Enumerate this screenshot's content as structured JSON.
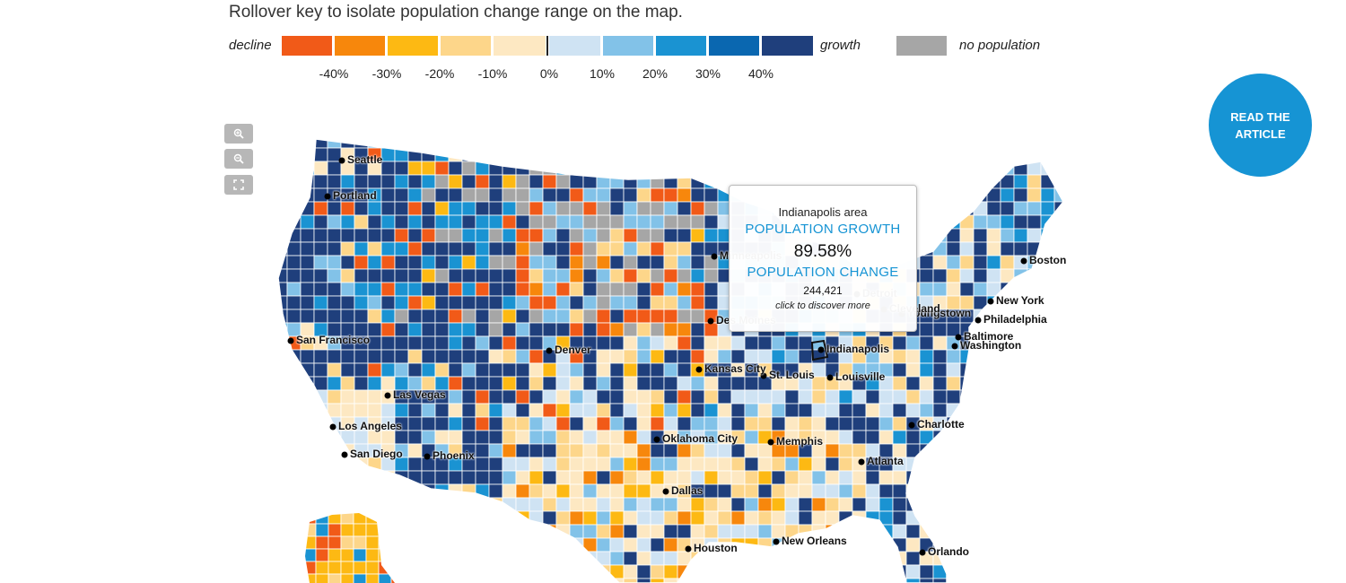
{
  "instructions": "Rollover key to isolate population change range on the map.",
  "legend": {
    "decline_label": "decline",
    "growth_label": "growth",
    "no_population_label": "no population",
    "swatches": [
      {
        "range": "below -40%",
        "color": "#f15a18"
      },
      {
        "range": "-40% to -30%",
        "color": "#f7870c"
      },
      {
        "range": "-30% to -20%",
        "color": "#fdb913"
      },
      {
        "range": "-20% to -10%",
        "color": "#fdd68a"
      },
      {
        "range": "-10% to 0%",
        "color": "#fde8c2"
      },
      {
        "range": "0% to 10%",
        "color": "#cfe3f3"
      },
      {
        "range": "10% to 20%",
        "color": "#82c2e8"
      },
      {
        "range": "20% to 30%",
        "color": "#1a93d2"
      },
      {
        "range": "30% to 40%",
        "color": "#0a67b0"
      },
      {
        "range": "above 40%",
        "color": "#1f3f7c"
      }
    ],
    "no_population_color": "#a6a6a6",
    "ticks": [
      "-40%",
      "-30%",
      "-20%",
      "-10%",
      "0%",
      "10%",
      "20%",
      "30%",
      "40%"
    ]
  },
  "controls": {
    "zoom_in_icon": "zoom-in-icon",
    "zoom_out_icon": "zoom-out-icon",
    "fullscreen_icon": "expand-icon"
  },
  "read_button": {
    "line1": "READ THE",
    "line2": "ARTICLE",
    "color": "#1694d4"
  },
  "tooltip": {
    "area": "Indianapolis area",
    "growth_heading": "POPULATION GROWTH",
    "growth_value": "89.58%",
    "change_heading": "POPULATION CHANGE",
    "change_value": "244,421",
    "cta": "click to discover more"
  },
  "cities": [
    "Seattle",
    "Portland",
    "San Francisco",
    "Los Angeles",
    "San Diego",
    "Las Vegas",
    "Phoenix",
    "Denver",
    "Kansas City",
    "St. Louis",
    "Oklahoma City",
    "Dallas",
    "Houston",
    "Memphis",
    "New Orleans",
    "Indianapolis",
    "Louisville",
    "Atlanta",
    "Charlotte",
    "Orlando",
    "Boston",
    "New York",
    "Philadelphia",
    "Baltimore",
    "Washington",
    "Youngstown",
    "Detroit",
    "Cleveland",
    "Minneapolis",
    "Des Moines"
  ]
}
